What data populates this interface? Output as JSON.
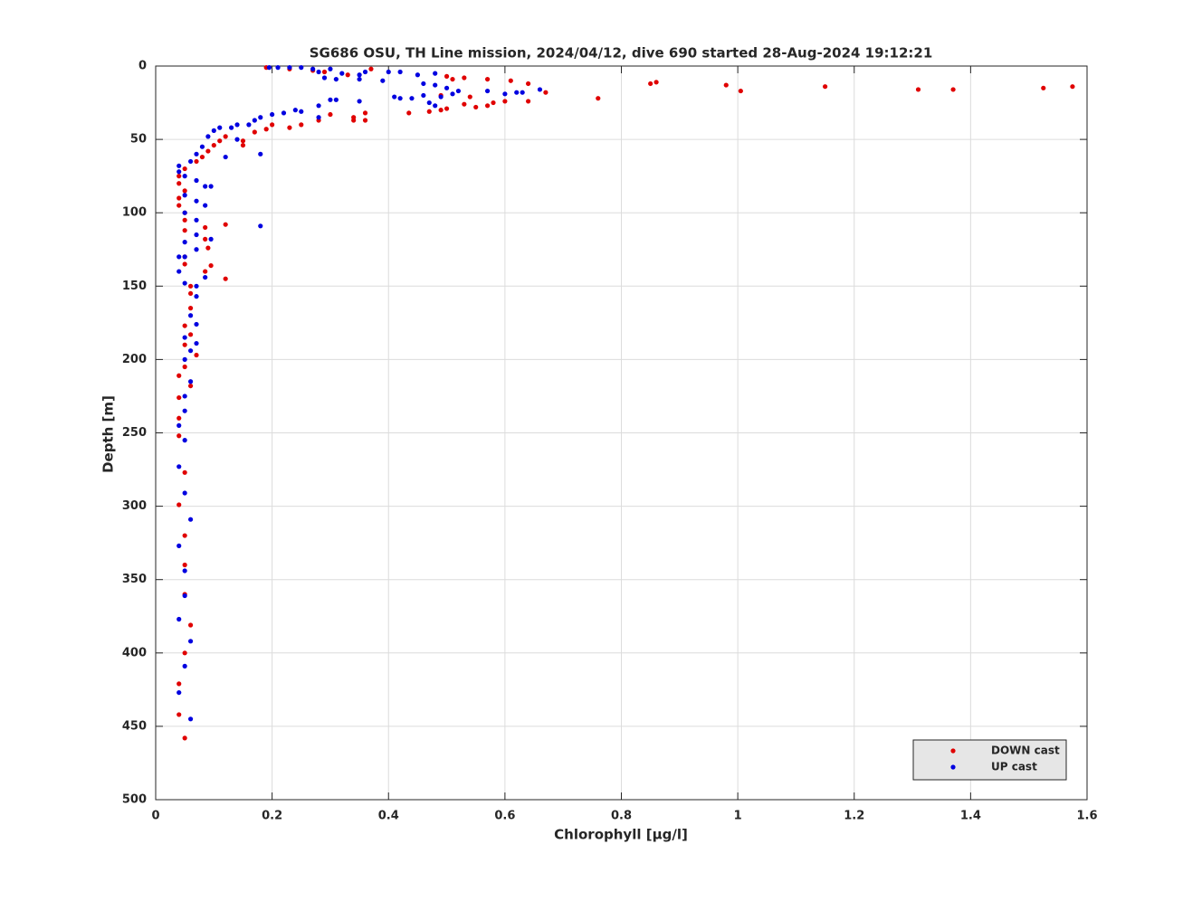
{
  "chart_data": {
    "type": "scatter",
    "title": "SG686 OSU, TH Line mission, 2024/04/12, dive 690 started 28-Aug-2024 19:12:21",
    "xlabel": "Chlorophyll [μg/l]",
    "ylabel": "Depth [m]",
    "xlim": [
      0,
      1.6
    ],
    "xticks": [
      0,
      0.2,
      0.4,
      0.6,
      0.8,
      1,
      1.2,
      1.4,
      1.6
    ],
    "ylim": [
      0,
      500
    ],
    "yticks": [
      0,
      50,
      100,
      150,
      200,
      250,
      300,
      350,
      400,
      450,
      500
    ],
    "y_reversed": true,
    "grid": true,
    "legend": "lower right",
    "series": [
      {
        "name": "DOWN cast",
        "color": "#e00000",
        "x": [
          0.19,
          0.23,
          0.27,
          0.29,
          0.33,
          0.37,
          0.5,
          0.51,
          0.53,
          0.57,
          0.61,
          0.64,
          0.67,
          0.76,
          0.85,
          0.86,
          0.98,
          1.005,
          1.15,
          1.31,
          1.37,
          1.525,
          1.575,
          0.49,
          0.54,
          0.64,
          0.6,
          0.58,
          0.57,
          0.55,
          0.53,
          0.5,
          0.49,
          0.47,
          0.435,
          0.36,
          0.36,
          0.34,
          0.34,
          0.3,
          0.28,
          0.25,
          0.23,
          0.2,
          0.19,
          0.17,
          0.15,
          0.15,
          0.12,
          0.11,
          0.1,
          0.09,
          0.08,
          0.07,
          0.05,
          0.04,
          0.04,
          0.05,
          0.04,
          0.04,
          0.05,
          0.05,
          0.12,
          0.085,
          0.05,
          0.085,
          0.09,
          0.05,
          0.05,
          0.095,
          0.085,
          0.12,
          0.06,
          0.06,
          0.06,
          0.05,
          0.06,
          0.05,
          0.07,
          0.05,
          0.04,
          0.06,
          0.04,
          0.04,
          0.04,
          0.05,
          0.04,
          0.05,
          0.05,
          0.05,
          0.06,
          0.05,
          0.04,
          0.04,
          0.05
        ],
        "values": [
          1,
          2,
          3,
          4,
          6,
          2,
          7,
          9,
          8,
          9,
          10,
          12,
          18,
          22,
          12,
          11,
          13,
          17,
          14,
          16,
          16,
          15,
          14,
          20,
          21,
          24,
          24,
          25,
          27,
          28,
          26,
          29,
          30,
          31,
          32,
          32,
          37,
          35,
          37,
          33,
          37,
          40,
          42,
          40,
          43,
          45,
          51,
          54,
          48,
          51,
          54,
          58,
          62,
          65,
          70,
          75,
          80,
          85,
          90,
          95,
          100,
          105,
          108,
          110,
          112,
          118,
          124,
          130,
          135,
          136,
          140,
          145,
          150,
          155,
          165,
          177,
          183,
          190,
          197,
          205,
          211,
          218,
          226,
          240,
          252,
          277,
          299,
          320,
          340,
          360,
          381,
          400,
          421,
          442,
          458
        ]
      },
      {
        "name": "UP cast",
        "color": "#0000e0",
        "x": [
          0.195,
          0.21,
          0.23,
          0.25,
          0.27,
          0.3,
          0.28,
          0.32,
          0.35,
          0.36,
          0.4,
          0.42,
          0.45,
          0.48,
          0.29,
          0.31,
          0.35,
          0.39,
          0.46,
          0.48,
          0.5,
          0.52,
          0.57,
          0.6,
          0.62,
          0.63,
          0.66,
          0.41,
          0.42,
          0.44,
          0.46,
          0.49,
          0.51,
          0.48,
          0.47,
          0.35,
          0.31,
          0.3,
          0.28,
          0.28,
          0.25,
          0.24,
          0.22,
          0.2,
          0.18,
          0.17,
          0.16,
          0.14,
          0.13,
          0.11,
          0.1,
          0.14,
          0.12,
          0.18,
          0.09,
          0.08,
          0.07,
          0.06,
          0.04,
          0.04,
          0.05,
          0.07,
          0.085,
          0.095,
          0.05,
          0.07,
          0.085,
          0.05,
          0.07,
          0.18,
          0.07,
          0.095,
          0.05,
          0.07,
          0.05,
          0.04,
          0.04,
          0.085,
          0.05,
          0.07,
          0.07,
          0.06,
          0.07,
          0.05,
          0.07,
          0.06,
          0.05,
          0.06,
          0.05,
          0.05,
          0.04,
          0.05,
          0.04,
          0.05,
          0.06,
          0.04,
          0.05,
          0.05,
          0.04,
          0.06,
          0.05,
          0.04,
          0.06
        ],
        "values": [
          1,
          1,
          1,
          1,
          2,
          2,
          4,
          5,
          6,
          4,
          4,
          4,
          6,
          5,
          8,
          9,
          9,
          10,
          12,
          13,
          15,
          17,
          17,
          19,
          18,
          18,
          16,
          21,
          22,
          22,
          20,
          21,
          19,
          27,
          25,
          24,
          23,
          23,
          27,
          35,
          31,
          30,
          32,
          33,
          35,
          37,
          40,
          40,
          42,
          42,
          44,
          50,
          62,
          60,
          48,
          55,
          60,
          65,
          68,
          72,
          75,
          78,
          82,
          82,
          88,
          92,
          95,
          100,
          105,
          109,
          115,
          118,
          120,
          125,
          130,
          130,
          140,
          144,
          148,
          150,
          157,
          170,
          176,
          185,
          189,
          194,
          200,
          215,
          225,
          235,
          245,
          255,
          273,
          291,
          309,
          327,
          344,
          361,
          377,
          392,
          409,
          427,
          445
        ]
      }
    ]
  }
}
